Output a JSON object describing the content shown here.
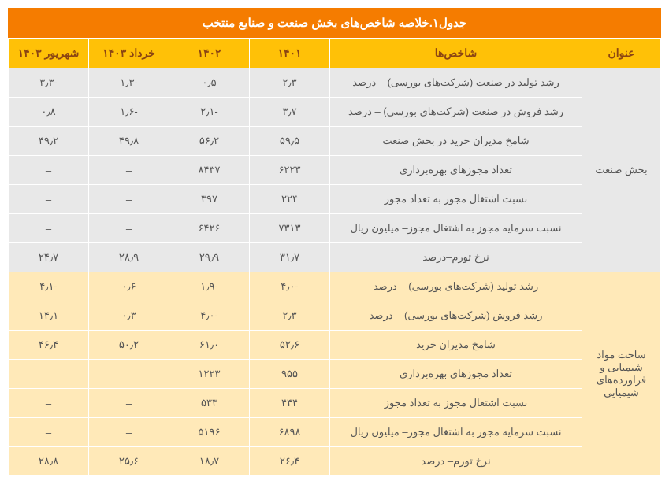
{
  "title": "جدول۱.خلاصه شاخص‌های بخش صنعت و صنایع منتخب",
  "headers": {
    "col_title": "عنوان",
    "col_indicator": "شاخص‌ها",
    "col_1401": "۱۴۰۱",
    "col_1402": "۱۴۰۲",
    "col_khordad1403": "خرداد ۱۴۰۳",
    "col_shahrivar1403": "شهریور ۱۴۰۳"
  },
  "sections": [
    {
      "group_label": "بخش صنعت",
      "rows": [
        {
          "indicator": "رشد تولید در صنعت (شرکت‌های بورسی) – درصد",
          "c1401": "۲٫۳",
          "c1402": "۰٫۵",
          "ck": "-۱٫۳",
          "cs": "-۳٫۳"
        },
        {
          "indicator": "رشد فروش در صنعت (شرکت‌های بورسی) – درصد",
          "c1401": "۳٫۷",
          "c1402": "-۲٫۱",
          "ck": "-۱٫۶",
          "cs": "۰٫۸"
        },
        {
          "indicator": "شامخ مدیران خرید در بخش صنعت",
          "c1401": "۵۹٫۵",
          "c1402": "۵۶٫۲",
          "ck": "۴۹٫۸",
          "cs": "۴۹٫۲"
        },
        {
          "indicator": "تعداد مجوزهای بهره‌برداری",
          "c1401": "۶۲۲۳",
          "c1402": "۸۴۳۷",
          "ck": "–",
          "cs": "–"
        },
        {
          "indicator": "نسبت اشتغال مجوز به تعداد مجوز",
          "c1401": "۲۲۴",
          "c1402": "۳۹۷",
          "ck": "–",
          "cs": "–"
        },
        {
          "indicator": "نسبت سرمایه مجوز به اشتغال مجوز– میلیون ریال",
          "c1401": "۷۳۱۳",
          "c1402": "۶۴۲۶",
          "ck": "–",
          "cs": "–"
        },
        {
          "indicator": "نرخ تورم–درصد",
          "c1401": "۳۱٫۷",
          "c1402": "۲۹٫۹",
          "ck": "۲۸٫۹",
          "cs": "۲۴٫۷"
        }
      ]
    },
    {
      "group_label": "ساخت مواد شیمیایی و فراورده‌های شیمیایی",
      "rows": [
        {
          "indicator": "رشد تولید (شرکت‌های بورسی) – درصد",
          "c1401": "-۴٫۰",
          "c1402": "-۱٫۹",
          "ck": "۰٫۶",
          "cs": "-۴٫۱"
        },
        {
          "indicator": "رشد فروش (شرکت‌های بورسی) – درصد",
          "c1401": "۲٫۳",
          "c1402": "-۴٫۰",
          "ck": "۰٫۳",
          "cs": "۱۴٫۱"
        },
        {
          "indicator": "شامخ مدیران خرید",
          "c1401": "۵۲٫۶",
          "c1402": "۶۱٫۰",
          "ck": "۵۰٫۲",
          "cs": "۴۶٫۴"
        },
        {
          "indicator": "تعداد مجوزهای بهره‌برداری",
          "c1401": "۹۵۵",
          "c1402": "۱۲۲۳",
          "ck": "–",
          "cs": "–"
        },
        {
          "indicator": "نسبت اشتغال مجوز به تعداد مجوز",
          "c1401": "۴۴۴",
          "c1402": "۵۳۳",
          "ck": "–",
          "cs": "–"
        },
        {
          "indicator": "نسبت سرمایه مجوز به اشتغال مجوز– میلیون ریال",
          "c1401": "۶۸۹۸",
          "c1402": "۵۱۹۶",
          "ck": "–",
          "cs": "–"
        },
        {
          "indicator": "نرخ تورم– درصد",
          "c1401": "۲۶٫۴",
          "c1402": "۱۸٫۷",
          "ck": "۲۵٫۶",
          "cs": "۲۸٫۸"
        }
      ]
    }
  ],
  "colors": {
    "title_bg": "#f57c00",
    "title_text": "#ffffff",
    "header_bg": "#ffc107",
    "header_text": "#8b4513",
    "section1_bg": "#e8e8e8",
    "section2_bg": "#ffe9b8",
    "cell_text": "#555555",
    "border": "#ffffff"
  }
}
